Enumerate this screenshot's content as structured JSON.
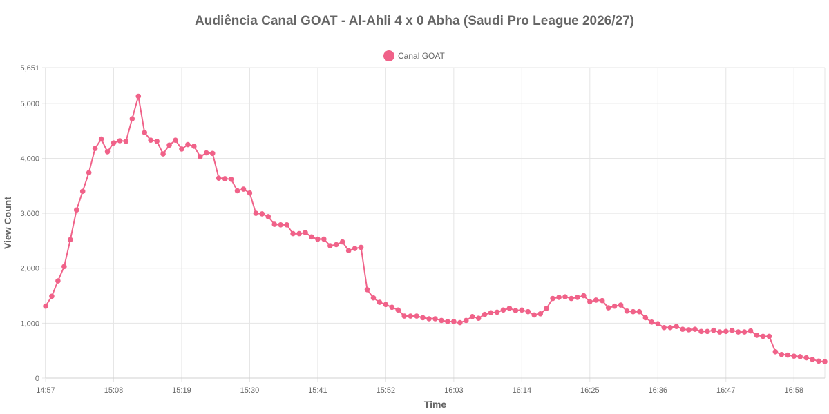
{
  "chart_data": {
    "type": "line",
    "title": "Audiência Canal GOAT - Al-Ahli 4 x 0 Abha (Saudi Pro League 2026/27)",
    "xlabel": "Time",
    "ylabel": "View Count",
    "ylim": [
      0,
      5651
    ],
    "yticks": [
      0,
      1000,
      2000,
      3000,
      4000,
      5000,
      5651
    ],
    "ytick_labels": [
      "0",
      "1,000",
      "2,000",
      "3,000",
      "4,000",
      "5,000",
      "5,651"
    ],
    "xticks": [
      0,
      11,
      22,
      33,
      44,
      55,
      66,
      77,
      88,
      99,
      110,
      121
    ],
    "xtick_labels": [
      "14:57",
      "15:08",
      "15:19",
      "15:30",
      "15:41",
      "15:52",
      "16:03",
      "16:14",
      "16:25",
      "16:36",
      "16:47",
      "16:58"
    ],
    "xlim": [
      0,
      126
    ],
    "grid": true,
    "legend_position": "top",
    "series": [
      {
        "name": "Canal GOAT",
        "color": "#f06289",
        "values": [
          1310,
          1490,
          1770,
          2030,
          2520,
          3060,
          3400,
          3740,
          4180,
          4350,
          4120,
          4280,
          4320,
          4310,
          4720,
          5130,
          4470,
          4330,
          4310,
          4080,
          4240,
          4330,
          4170,
          4250,
          4220,
          4030,
          4100,
          4090,
          3640,
          3630,
          3620,
          3410,
          3440,
          3370,
          3000,
          2990,
          2940,
          2800,
          2790,
          2790,
          2630,
          2630,
          2650,
          2570,
          2530,
          2530,
          2410,
          2430,
          2480,
          2320,
          2360,
          2380,
          1610,
          1460,
          1380,
          1340,
          1290,
          1240,
          1130,
          1130,
          1130,
          1100,
          1080,
          1080,
          1050,
          1030,
          1030,
          1010,
          1050,
          1120,
          1090,
          1160,
          1190,
          1200,
          1240,
          1270,
          1230,
          1240,
          1210,
          1150,
          1170,
          1270,
          1450,
          1470,
          1480,
          1450,
          1470,
          1500,
          1390,
          1420,
          1410,
          1280,
          1310,
          1330,
          1220,
          1210,
          1210,
          1100,
          1020,
          990,
          920,
          920,
          940,
          890,
          880,
          890,
          850,
          850,
          870,
          840,
          850,
          870,
          840,
          840,
          860,
          780,
          760,
          760,
          480,
          430,
          420,
          400,
          390,
          370,
          340,
          310,
          300
        ]
      }
    ]
  }
}
